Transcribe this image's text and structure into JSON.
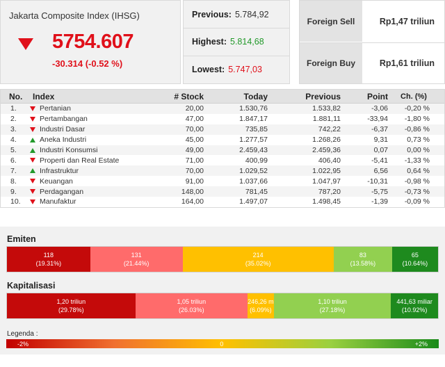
{
  "index": {
    "name": "Jakarta Composite Index (IHSG)",
    "value": "5754.607",
    "change": "-30.314 (-0.52 %)",
    "direction": "down"
  },
  "stats": {
    "previous_label": "Previous:",
    "previous_value": "5.784,92",
    "highest_label": "Highest:",
    "highest_value": "5.814,68",
    "lowest_label": "Lowest:",
    "lowest_value": "5.747,03"
  },
  "foreign": {
    "sell_label": "Foreign Sell",
    "sell_value": "Rp1,47 triliun",
    "buy_label": "Foreign Buy",
    "buy_value": "Rp1,61 triliun"
  },
  "sector_table": {
    "headers": {
      "no": "No.",
      "index": "Index",
      "stock": "# Stock",
      "today": "Today",
      "previous": "Previous",
      "point": "Point",
      "change": "Ch. (%)"
    },
    "rows": [
      {
        "no": "1.",
        "name": "Pertanian",
        "trend": "down",
        "stock": "20,00",
        "today": "1.530,76",
        "previous": "1.533,82",
        "point": "-3,06",
        "change": "-0,20 %"
      },
      {
        "no": "2.",
        "name": "Pertambangan",
        "trend": "down",
        "stock": "47,00",
        "today": "1.847,17",
        "previous": "1.881,11",
        "point": "-33,94",
        "change": "-1,80 %"
      },
      {
        "no": "3.",
        "name": "Industri Dasar",
        "trend": "down",
        "stock": "70,00",
        "today": "735,85",
        "previous": "742,22",
        "point": "-6,37",
        "change": "-0,86 %"
      },
      {
        "no": "4.",
        "name": "Aneka Industri",
        "trend": "up",
        "stock": "45,00",
        "today": "1.277,57",
        "previous": "1.268,26",
        "point": "9,31",
        "change": "0,73 %"
      },
      {
        "no": "5.",
        "name": "Industri Konsumsi",
        "trend": "up",
        "stock": "49,00",
        "today": "2.459,43",
        "previous": "2.459,36",
        "point": "0,07",
        "change": "0,00 %"
      },
      {
        "no": "6.",
        "name": "Properti dan Real Estate",
        "trend": "down",
        "stock": "71,00",
        "today": "400,99",
        "previous": "406,40",
        "point": "-5,41",
        "change": "-1,33 %"
      },
      {
        "no": "7.",
        "name": "Infrastruktur",
        "trend": "up",
        "stock": "70,00",
        "today": "1.029,52",
        "previous": "1.022,95",
        "point": "6,56",
        "change": "0,64 %"
      },
      {
        "no": "8.",
        "name": "Keuangan",
        "trend": "down",
        "stock": "91,00",
        "today": "1.037,66",
        "previous": "1.047,97",
        "point": "-10,31",
        "change": "-0,98 %"
      },
      {
        "no": "9.",
        "name": "Perdagangan",
        "trend": "down",
        "stock": "148,00",
        "today": "781,45",
        "previous": "787,20",
        "point": "-5,75",
        "change": "-0,73 %"
      },
      {
        "no": "10.",
        "name": "Manufaktur",
        "trend": "down",
        "stock": "164,00",
        "today": "1.497,07",
        "previous": "1.498,45",
        "point": "-1,39",
        "change": "-0,09 %"
      }
    ]
  },
  "emiten": {
    "title": "Emiten",
    "segments": [
      {
        "value": "118",
        "pct": "(19.31%)",
        "share": 19.31,
        "color": "#c40a0a"
      },
      {
        "value": "131",
        "pct": "(21.44%)",
        "share": 21.44,
        "color": "#ff6b6b"
      },
      {
        "value": "214",
        "pct": "(35.02%)",
        "share": 35.02,
        "color": "#ffc000"
      },
      {
        "value": "83",
        "pct": "(13.58%)",
        "share": 13.58,
        "color": "#92d050"
      },
      {
        "value": "65",
        "pct": "(10.64%)",
        "share": 10.64,
        "color": "#1e8a1e"
      }
    ]
  },
  "kapitalisasi": {
    "title": "Kapitalisasi",
    "segments": [
      {
        "value": "1,20 triliun",
        "pct": "(29.78%)",
        "share": 29.78,
        "color": "#c40a0a"
      },
      {
        "value": "1,05 triliun",
        "pct": "(26.03%)",
        "share": 26.03,
        "color": "#ff6b6b"
      },
      {
        "value": "246,26 m",
        "pct": "(6.09%)",
        "share": 6.09,
        "color": "#ffc000"
      },
      {
        "value": "1,10 triliun",
        "pct": "(27.18%)",
        "share": 27.18,
        "color": "#92d050"
      },
      {
        "value": "441,63 miliar",
        "pct": "(10.92%)",
        "share": 10.92,
        "color": "#1e8a1e"
      }
    ]
  },
  "legend": {
    "label": "Legenda :",
    "min": "-2%",
    "mid": "0",
    "max": "+2%"
  }
}
